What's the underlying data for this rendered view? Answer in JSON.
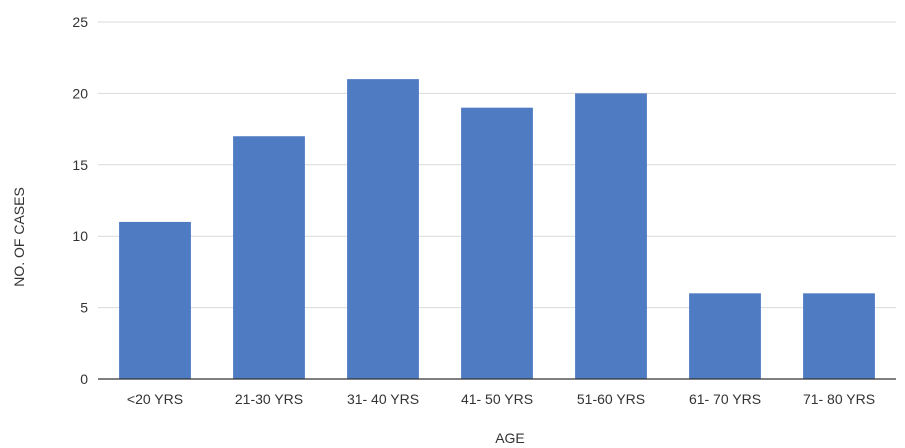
{
  "chart_data": {
    "type": "bar",
    "categories": [
      "<20 YRS",
      "21-30 YRS",
      "31- 40 YRS",
      "41- 50 YRS",
      "51-60 YRS",
      "61- 70 YRS",
      "71- 80 YRS"
    ],
    "values": [
      11,
      17,
      21,
      19,
      20,
      6,
      6
    ],
    "xlabel": "AGE",
    "ylabel": "NO. OF CASES",
    "ylim": [
      0,
      25
    ],
    "yticks": [
      0,
      5,
      10,
      15,
      20,
      25
    ],
    "grid": true,
    "legend": "none",
    "bar_color": "#4f7bc3",
    "grid_color": "#d9d9d9",
    "axis_color": "#333333"
  }
}
